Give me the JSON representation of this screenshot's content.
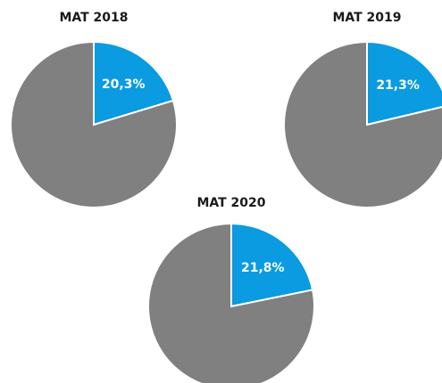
{
  "chart_data": [
    {
      "type": "pie",
      "title": "MAT 2018",
      "values": [
        20.3,
        79.7
      ],
      "value_labels": [
        "20,3%",
        null
      ],
      "colors": [
        "#0a9be0",
        "#808080"
      ]
    },
    {
      "type": "pie",
      "title": "MAT 2019",
      "values": [
        21.3,
        78.7
      ],
      "value_labels": [
        "21,3%",
        null
      ],
      "colors": [
        "#0a9be0",
        "#808080"
      ]
    },
    {
      "type": "pie",
      "title": "MAT 2020",
      "values": [
        21.8,
        78.2
      ],
      "value_labels": [
        "21,8%",
        null
      ],
      "colors": [
        "#0a9be0",
        "#808080"
      ]
    }
  ]
}
